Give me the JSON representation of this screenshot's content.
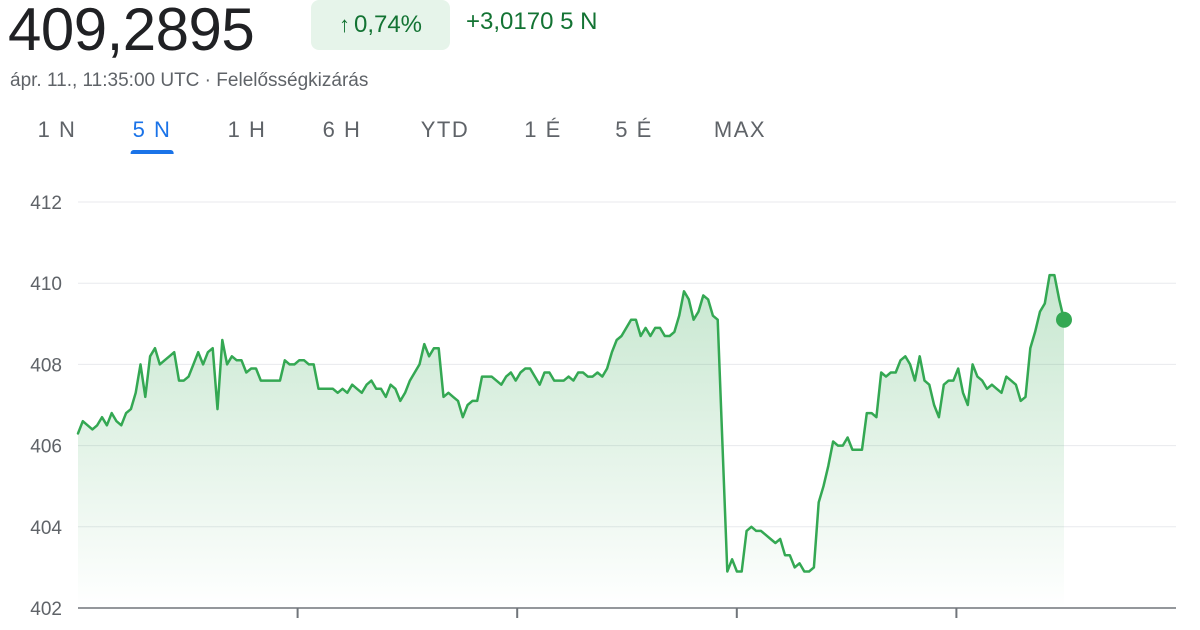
{
  "quote": {
    "price": "409,2895",
    "change_percent": "0,74%",
    "change_abs": "+3,0170",
    "change_period": "5 N",
    "timestamp": "ápr. 11., 11:35:00 UTC",
    "separator": " · ",
    "disclaimer": "Felelősségkizárás",
    "up_arrow_icon": "arrow-up-icon"
  },
  "tabs": [
    {
      "label": "1 N",
      "active": false
    },
    {
      "label": "5 N",
      "active": true
    },
    {
      "label": "1 H",
      "active": false
    },
    {
      "label": "6 H",
      "active": false
    },
    {
      "label": "YTD",
      "active": false
    },
    {
      "label": "1 É",
      "active": false
    },
    {
      "label": "5 É",
      "active": false
    },
    {
      "label": "MAX",
      "active": false
    }
  ],
  "colors": {
    "line": "#34a853",
    "positive_text": "#137333",
    "pill_bg": "#e6f4ea",
    "accent": "#1a73e8"
  },
  "chart_data": {
    "type": "area",
    "title": "",
    "xlabel": "",
    "ylabel": "",
    "ylim": [
      402,
      412
    ],
    "yticks": [
      402,
      404,
      406,
      408,
      410,
      412
    ],
    "grid": true,
    "x_tick_marks": 4,
    "series": [
      {
        "values": [
          406.3,
          406.6,
          406.5,
          406.4,
          406.5,
          406.7,
          406.5,
          406.8,
          406.6,
          406.5,
          406.8,
          406.9,
          407.3,
          408.0,
          407.2,
          408.2,
          408.4,
          408.0,
          408.1,
          408.2,
          408.3,
          407.6,
          407.6,
          407.7,
          408.0,
          408.3,
          408.0,
          408.3,
          408.4,
          406.9,
          408.6,
          408.0,
          408.2,
          408.1,
          408.1,
          407.8,
          407.9,
          407.9,
          407.6,
          407.6,
          407.6,
          407.6,
          407.6,
          408.1,
          408.0,
          408.0,
          408.1,
          408.1,
          408.0,
          408.0,
          407.4,
          407.4,
          407.4,
          407.4,
          407.3,
          407.4,
          407.3,
          407.5,
          407.4,
          407.3,
          407.5,
          407.6,
          407.4,
          407.4,
          407.2,
          407.5,
          407.4,
          407.1,
          407.3,
          407.6,
          407.8,
          408.0,
          408.5,
          408.2,
          408.4,
          408.4,
          407.2,
          407.3,
          407.2,
          407.1,
          406.7,
          407.0,
          407.1,
          407.1,
          407.7,
          407.7,
          407.7,
          407.6,
          407.5,
          407.7,
          407.8,
          407.6,
          407.8,
          407.9,
          407.9,
          407.7,
          407.5,
          407.8,
          407.8,
          407.6,
          407.6,
          407.6,
          407.7,
          407.6,
          407.8,
          407.8,
          407.7,
          407.7,
          407.8,
          407.7,
          407.9,
          408.3,
          408.6,
          408.7,
          408.9,
          409.1,
          409.1,
          408.7,
          408.9,
          408.7,
          408.9,
          408.9,
          408.7,
          408.7,
          408.8,
          409.2,
          409.8,
          409.6,
          409.1,
          409.3,
          409.7,
          409.6,
          409.2,
          409.1,
          406.0,
          402.9,
          403.2,
          402.9,
          402.9,
          403.9,
          404.0,
          403.9,
          403.9,
          403.8,
          403.7,
          403.6,
          403.7,
          403.3,
          403.3,
          403.0,
          403.1,
          402.9,
          402.9,
          403.0,
          404.6,
          405.0,
          405.5,
          406.1,
          406.0,
          406.0,
          406.2,
          405.9,
          405.9,
          405.9,
          406.8,
          406.8,
          406.7,
          407.8,
          407.7,
          407.8,
          407.8,
          408.1,
          408.2,
          408.0,
          407.6,
          408.2,
          407.6,
          407.5,
          407.0,
          406.7,
          407.5,
          407.6,
          407.6,
          407.9,
          407.3,
          407.0,
          408.0,
          407.7,
          407.6,
          407.4,
          407.5,
          407.4,
          407.3,
          407.7,
          407.6,
          407.5,
          407.1,
          407.2,
          408.4,
          408.8,
          409.3,
          409.5,
          410.2,
          410.2,
          409.6,
          409.1
        ]
      }
    ]
  }
}
